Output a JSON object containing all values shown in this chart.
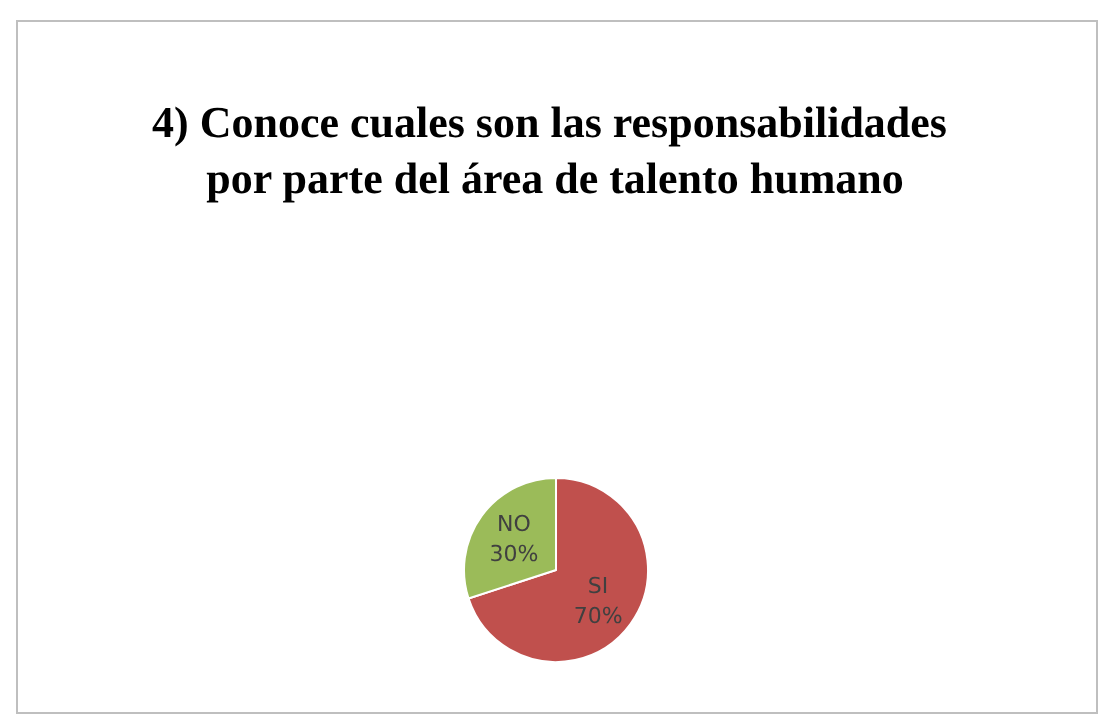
{
  "chart_data": {
    "type": "pie",
    "title": "4) Conoce cuales son las responsabilidades por parte del área de talento humano",
    "categories": [
      "SI",
      "NO"
    ],
    "values": [
      70,
      30
    ],
    "colors": [
      "#c0504d",
      "#9bbb59"
    ],
    "value_labels": [
      "70%",
      "30%"
    ],
    "legend": false
  }
}
